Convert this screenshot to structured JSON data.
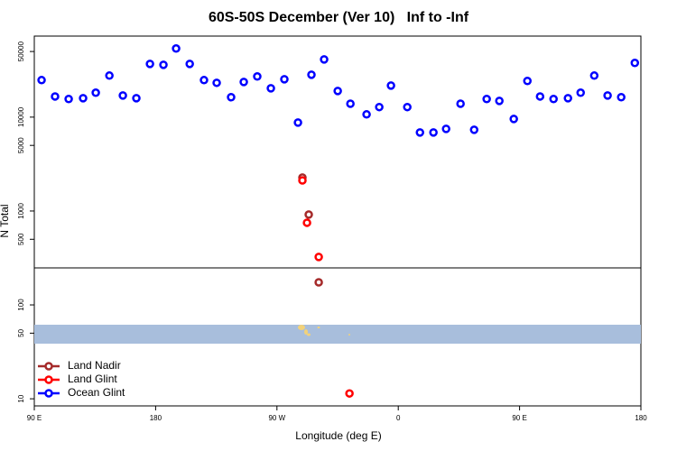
{
  "chart_data": {
    "type": "scatter",
    "title": "60S-50S December (Ver 10)   Inf to -Inf",
    "x_label": "Longitude (deg E)",
    "y_label": "N Total",
    "log_y": true,
    "legend": "bottom-left",
    "xlim": [
      90,
      540
    ],
    "ylim": [
      8.4,
      73000
    ],
    "xticks": [
      {
        "value": 90,
        "label": "90 E"
      },
      {
        "value": 180,
        "label": "180"
      },
      {
        "value": 270,
        "label": "90 W"
      },
      {
        "value": 360,
        "label": "0"
      },
      {
        "value": 450,
        "label": "90 E"
      },
      {
        "value": 540,
        "label": "180"
      }
    ],
    "yticks": [
      10,
      50,
      100,
      500,
      1000,
      5000,
      10000,
      50000
    ],
    "series": [
      {
        "name": "Land Nadir",
        "color": "#a52a2a",
        "x": [
          288.9,
          293.6,
          301.0
        ],
        "values": [
          2270,
          916,
          174
        ]
      },
      {
        "name": "Land Glint",
        "color": "#ff0000",
        "x": [
          288.9,
          292.3,
          301.0,
          323.8
        ],
        "values": [
          2120,
          750,
          324,
          11.4
        ]
      },
      {
        "name": "Ocean Glint",
        "color": "#0000ff",
        "x": [
          95.4,
          105.4,
          115.5,
          126.2,
          135.6,
          145.7,
          155.7,
          165.7,
          175.8,
          185.8,
          195.2,
          205.3,
          215.9,
          225.3,
          236.0,
          245.4,
          255.4,
          265.5,
          275.5,
          285.6,
          295.6,
          305.0,
          315.1,
          324.5,
          336.5,
          345.9,
          354.6,
          366.7,
          376.1,
          386.1,
          395.5,
          406.2,
          416.3,
          425.6,
          435.0,
          445.7,
          455.8,
          465.2,
          475.2,
          485.9,
          495.3,
          505.4,
          515.3,
          525.4,
          535.5
        ],
        "values": [
          24800,
          16600,
          15600,
          15900,
          18200,
          27700,
          17000,
          15900,
          36900,
          36100,
          53800,
          36900,
          24800,
          23200,
          16300,
          23700,
          27100,
          20300,
          25300,
          8750,
          28300,
          41200,
          19000,
          13900,
          10700,
          12800,
          21700,
          12800,
          6870,
          6870,
          7500,
          13900,
          7330,
          15600,
          14900,
          9570,
          24300,
          16600,
          15600,
          15900,
          18200,
          27700,
          17000,
          16300,
          37800
        ]
      }
    ]
  }
}
